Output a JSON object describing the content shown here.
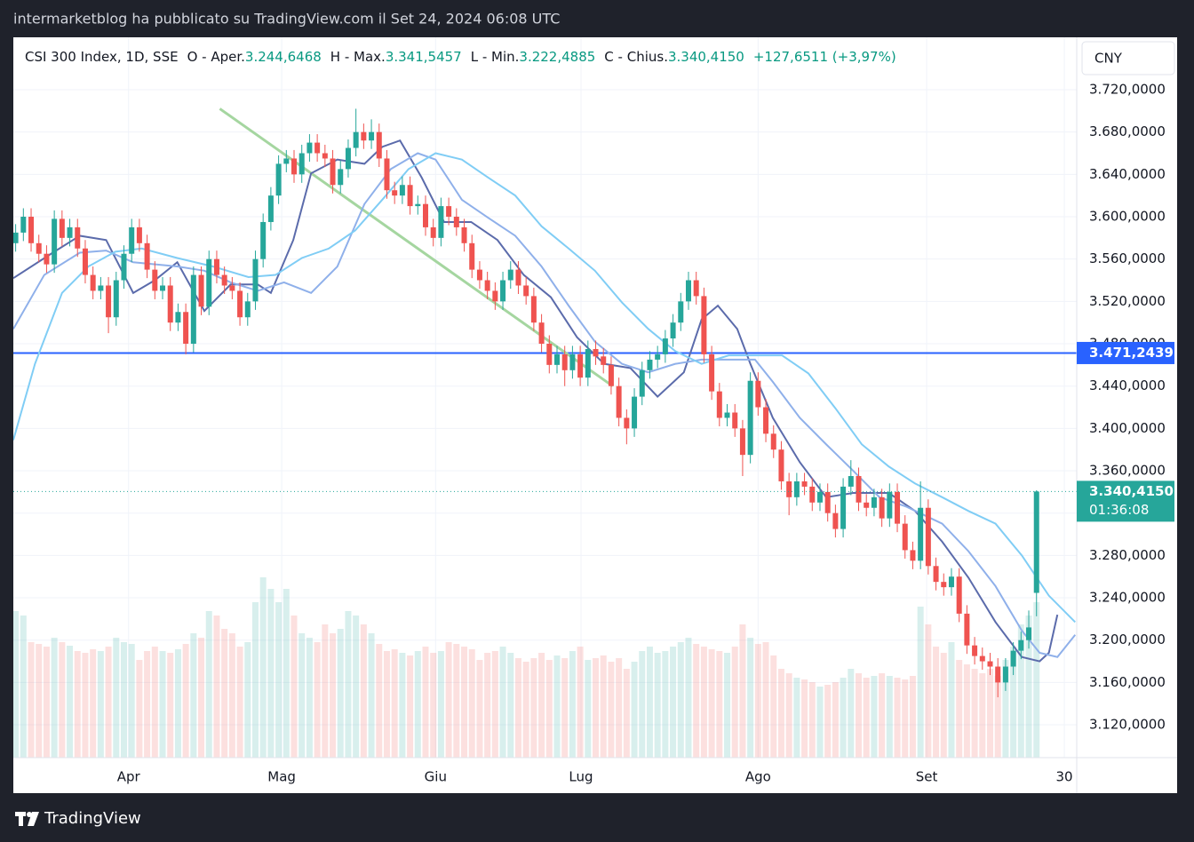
{
  "header": {
    "byline": "intermarketblog ha pubblicato su TradingView.com il Set 24, 2024 06:08 UTC"
  },
  "footer": {
    "brand": "TradingView"
  },
  "chart_data": {
    "type": "candlestick",
    "legend": {
      "symbol": "CSI 300 Index, 1D, SSE",
      "open_label": "O - Aper.",
      "open": "3.244,6468",
      "high_label": "H - Max.",
      "high": "3.341,5457",
      "low_label": "L - Min.",
      "low": "3.222,4885",
      "close_label": "C - Chius.",
      "close": "3.340,4150",
      "change": "+127,6511 (+3,97%)"
    },
    "currency": "CNY",
    "up_color": "#26a69a",
    "down_color": "#ef5350",
    "open": [
      3575,
      3585,
      3600,
      3575,
      3565,
      3555,
      3598,
      3580,
      3590,
      3570,
      3545,
      3530,
      3535,
      3505,
      3540,
      3565,
      3590,
      3575,
      3550,
      3530,
      3535,
      3500,
      3510,
      3480,
      3545,
      3515,
      3560,
      3545,
      3535,
      3530,
      3505,
      3520,
      3560,
      3595,
      3620,
      3650,
      3655,
      3640,
      3660,
      3670,
      3660,
      3655,
      3630,
      3645,
      3665,
      3680,
      3672,
      3680,
      3655,
      3625,
      3620,
      3630,
      3610,
      3612,
      3590,
      3580,
      3610,
      3600,
      3590,
      3575,
      3550,
      3540,
      3530,
      3520,
      3540,
      3550,
      3535,
      3525,
      3500,
      3480,
      3460,
      3470,
      3455,
      3470,
      3448,
      3475,
      3468,
      3460,
      3440,
      3410,
      3400,
      3430,
      3455,
      3465,
      3470,
      3485,
      3500,
      3520,
      3540,
      3525,
      3470,
      3435,
      3410,
      3415,
      3400,
      3375,
      3445,
      3420,
      3395,
      3380,
      3350,
      3335,
      3350,
      3345,
      3330,
      3340,
      3320,
      3305,
      3345,
      3355,
      3330,
      3325,
      3335,
      3315,
      3340,
      3310,
      3285,
      3275,
      3325,
      3270,
      3255,
      3250,
      3260,
      3225,
      3195,
      3185,
      3180,
      3175,
      3160,
      3175,
      3190,
      3200,
      3244.6468
    ],
    "high": [
      3593,
      3608,
      3608,
      3583,
      3573,
      3606,
      3606,
      3598,
      3598,
      3578,
      3553,
      3543,
      3543,
      3548,
      3573,
      3598,
      3598,
      3583,
      3558,
      3543,
      3543,
      3518,
      3518,
      3553,
      3553,
      3568,
      3568,
      3553,
      3543,
      3538,
      3528,
      3568,
      3603,
      3628,
      3658,
      3663,
      3663,
      3668,
      3678,
      3678,
      3668,
      3663,
      3653,
      3673,
      3702,
      3688,
      3692,
      3688,
      3663,
      3633,
      3638,
      3638,
      3620,
      3620,
      3598,
      3618,
      3618,
      3608,
      3598,
      3583,
      3558,
      3548,
      3538,
      3548,
      3558,
      3558,
      3543,
      3533,
      3508,
      3488,
      3478,
      3478,
      3478,
      3478,
      3483,
      3483,
      3476,
      3468,
      3448,
      3418,
      3438,
      3463,
      3473,
      3478,
      3493,
      3508,
      3528,
      3548,
      3548,
      3533,
      3478,
      3443,
      3423,
      3423,
      3408,
      3453,
      3453,
      3428,
      3403,
      3388,
      3358,
      3358,
      3358,
      3353,
      3348,
      3348,
      3328,
      3353,
      3370,
      3363,
      3338,
      3343,
      3343,
      3348,
      3348,
      3318,
      3293,
      3350,
      3333,
      3278,
      3263,
      3268,
      3268,
      3233,
      3203,
      3193,
      3188,
      3183,
      3183,
      3198,
      3208,
      3228,
      3341.5457
    ],
    "low": [
      3567,
      3577,
      3567,
      3557,
      3547,
      3547,
      3572,
      3572,
      3562,
      3537,
      3522,
      3522,
      3490,
      3497,
      3532,
      3557,
      3567,
      3542,
      3522,
      3522,
      3492,
      3492,
      3470,
      3472,
      3507,
      3507,
      3537,
      3527,
      3522,
      3497,
      3497,
      3512,
      3552,
      3587,
      3612,
      3642,
      3632,
      3632,
      3652,
      3652,
      3647,
      3622,
      3622,
      3637,
      3657,
      3664,
      3664,
      3647,
      3617,
      3612,
      3612,
      3602,
      3602,
      3582,
      3572,
      3572,
      3592,
      3582,
      3567,
      3542,
      3532,
      3522,
      3512,
      3512,
      3532,
      3527,
      3517,
      3492,
      3472,
      3452,
      3452,
      3440,
      3447,
      3440,
      3440,
      3460,
      3452,
      3432,
      3402,
      3385,
      3392,
      3422,
      3447,
      3457,
      3462,
      3477,
      3492,
      3512,
      3517,
      3462,
      3427,
      3402,
      3402,
      3392,
      3355,
      3367,
      3412,
      3387,
      3372,
      3342,
      3318,
      3327,
      3337,
      3322,
      3322,
      3312,
      3297,
      3297,
      3337,
      3322,
      3317,
      3317,
      3307,
      3307,
      3302,
      3277,
      3267,
      3267,
      3262,
      3247,
      3242,
      3242,
      3217,
      3187,
      3177,
      3172,
      3167,
      3146,
      3152,
      3167,
      3182,
      3192,
      3222.4885
    ],
    "close": [
      3585,
      3600,
      3575,
      3565,
      3555,
      3598,
      3580,
      3590,
      3570,
      3545,
      3530,
      3535,
      3505,
      3540,
      3565,
      3590,
      3575,
      3550,
      3530,
      3535,
      3500,
      3510,
      3480,
      3545,
      3515,
      3560,
      3545,
      3535,
      3530,
      3505,
      3520,
      3560,
      3595,
      3620,
      3650,
      3655,
      3640,
      3660,
      3670,
      3660,
      3655,
      3630,
      3645,
      3665,
      3680,
      3672,
      3680,
      3655,
      3625,
      3620,
      3630,
      3610,
      3612,
      3590,
      3580,
      3610,
      3600,
      3590,
      3575,
      3550,
      3540,
      3530,
      3520,
      3540,
      3550,
      3535,
      3525,
      3500,
      3480,
      3460,
      3470,
      3455,
      3470,
      3448,
      3475,
      3468,
      3460,
      3440,
      3410,
      3400,
      3430,
      3455,
      3465,
      3470,
      3485,
      3500,
      3520,
      3540,
      3525,
      3470,
      3435,
      3410,
      3415,
      3400,
      3375,
      3445,
      3420,
      3395,
      3380,
      3350,
      3335,
      3350,
      3345,
      3330,
      3340,
      3320,
      3305,
      3345,
      3355,
      3330,
      3325,
      3335,
      3315,
      3340,
      3310,
      3285,
      3275,
      3325,
      3270,
      3255,
      3250,
      3260,
      3225,
      3195,
      3185,
      3180,
      3175,
      3160,
      3175,
      3190,
      3200,
      3212,
      3340.415
    ],
    "volume": [
      165,
      160,
      130,
      128,
      125,
      135,
      130,
      126,
      120,
      118,
      122,
      120,
      125,
      135,
      130,
      128,
      110,
      120,
      125,
      120,
      118,
      122,
      128,
      140,
      135,
      165,
      160,
      145,
      140,
      125,
      130,
      175,
      203,
      190,
      175,
      190,
      160,
      140,
      135,
      130,
      150,
      140,
      145,
      165,
      160,
      150,
      140,
      128,
      120,
      122,
      118,
      115,
      120,
      125,
      118,
      120,
      130,
      128,
      125,
      122,
      110,
      118,
      120,
      125,
      118,
      112,
      108,
      112,
      118,
      110,
      115,
      112,
      120,
      125,
      110,
      112,
      115,
      108,
      112,
      100,
      108,
      120,
      125,
      118,
      120,
      125,
      130,
      135,
      128,
      125,
      122,
      120,
      118,
      125,
      150,
      135,
      128,
      130,
      115,
      100,
      95,
      90,
      88,
      85,
      80,
      82,
      85,
      90,
      100,
      95,
      90,
      92,
      95,
      92,
      90,
      88,
      92,
      170,
      150,
      125,
      118,
      130,
      110,
      105,
      100,
      95,
      100,
      92,
      110,
      125,
      150,
      160,
      175
    ],
    "xlim": [
      -0.3,
      137.2
    ],
    "xticks": [
      {
        "value": 14.6,
        "label": "Apr"
      },
      {
        "value": 34.4,
        "label": "Mag"
      },
      {
        "value": 54.3,
        "label": "Giu"
      },
      {
        "value": 73.1,
        "label": "Lug"
      },
      {
        "value": 96,
        "label": "Ago"
      },
      {
        "value": 117.8,
        "label": "Set"
      },
      {
        "value": 135.6,
        "label": "30"
      }
    ],
    "ylim": [
      3089,
      3769.5
    ],
    "yticks": [
      {
        "value": 3120,
        "label": "3.120,0000"
      },
      {
        "value": 3160,
        "label": "3.160,0000"
      },
      {
        "value": 3200,
        "label": "3.200,0000"
      },
      {
        "value": 3240,
        "label": "3.240,0000"
      },
      {
        "value": 3280,
        "label": "3.280,0000"
      },
      {
        "value": 3320,
        "label": "3.320,0000"
      },
      {
        "value": 3360,
        "label": "3.360,0000"
      },
      {
        "value": 3400,
        "label": "3.400,0000"
      },
      {
        "value": 3440,
        "label": "3.440,0000"
      },
      {
        "value": 3480,
        "label": "3.480,0000"
      },
      {
        "value": 3520,
        "label": "3.520,0000"
      },
      {
        "value": 3560,
        "label": "3.560,0000"
      },
      {
        "value": 3600,
        "label": "3.600,0000"
      },
      {
        "value": 3640,
        "label": "3.640,0000"
      },
      {
        "value": 3680,
        "label": "3.680,0000"
      },
      {
        "value": 3720,
        "label": "3.720,0000"
      }
    ],
    "vlim": [
      0,
      260
    ],
    "grid": true,
    "moving_averages": [
      {
        "color": "#5b6bab",
        "x": [
          -0.3,
          4.8,
          8.3,
          11.7,
          15.2,
          18,
          20.9,
          24.4,
          27.8,
          31.3,
          33,
          35.9,
          38.2,
          41.6,
          45.1,
          47.4,
          49.7,
          52.5,
          55.4,
          58.9,
          62.3,
          65.7,
          69.2,
          72.6,
          76.1,
          79.5,
          83,
          86.4,
          88.7,
          90.8,
          93.3,
          95,
          97.9,
          101.4,
          104.8,
          108.3,
          112.9,
          116.3,
          119.8,
          123.2,
          126.7,
          130.1,
          132.4,
          133.6,
          134.7
        ],
        "values": [
          3542,
          3566,
          3582,
          3578,
          3528,
          3540,
          3557,
          3511,
          3536,
          3536,
          3528,
          3578,
          3641,
          3654,
          3650,
          3666,
          3672,
          3637,
          3595,
          3595,
          3578,
          3545,
          3524,
          3486,
          3461,
          3457,
          3430,
          3453,
          3503,
          3516,
          3494,
          3461,
          3410,
          3368,
          3335,
          3339,
          3339,
          3322,
          3293,
          3259,
          3217,
          3184,
          3180,
          3188,
          3224
        ]
      },
      {
        "color": "#8fb0ea",
        "x": [
          -0.3,
          3.7,
          8.3,
          11.7,
          15.2,
          20.9,
          24.4,
          27.8,
          31.3,
          34.7,
          38.2,
          41.6,
          45.1,
          48.5,
          52,
          54.3,
          57.7,
          61.1,
          64.6,
          68,
          71.5,
          74.9,
          78.4,
          81.8,
          85.3,
          88.7,
          92.2,
          95.6,
          97.9,
          101.4,
          104.8,
          108.3,
          111.7,
          115.2,
          119.8,
          123.2,
          126.7,
          130.1,
          132.4,
          134.7,
          137
        ],
        "values": [
          3494,
          3545,
          3566,
          3568,
          3557,
          3553,
          3549,
          3538,
          3530,
          3538,
          3528,
          3553,
          3612,
          3645,
          3660,
          3654,
          3616,
          3599,
          3582,
          3553,
          3516,
          3482,
          3461,
          3453,
          3461,
          3465,
          3465,
          3465,
          3444,
          3410,
          3385,
          3360,
          3335,
          3326,
          3310,
          3284,
          3251,
          3209,
          3188,
          3184,
          3205
        ]
      },
      {
        "color": "#80cdf5",
        "x": [
          -0.3,
          2.5,
          6,
          9.4,
          12.9,
          16.3,
          20.9,
          25.5,
          30.1,
          33.6,
          37,
          40.5,
          43.9,
          47.4,
          50.8,
          54.3,
          57.7,
          61.1,
          64.6,
          68,
          71.5,
          74.9,
          78.4,
          81.8,
          85.3,
          88.7,
          92.2,
          95.6,
          99.1,
          102.5,
          106,
          109.4,
          112.9,
          116.3,
          119.8,
          123.2,
          126.7,
          130.1,
          133.6,
          137
        ],
        "values": [
          3389,
          3461,
          3528,
          3553,
          3567,
          3570,
          3561,
          3553,
          3543,
          3545,
          3561,
          3570,
          3587,
          3616,
          3645,
          3660,
          3654,
          3637,
          3620,
          3591,
          3570,
          3549,
          3519,
          3494,
          3473,
          3461,
          3469,
          3469,
          3469,
          3452,
          3419,
          3385,
          3364,
          3348,
          3335,
          3322,
          3310,
          3280,
          3242,
          3217
        ]
      }
    ],
    "trendline": {
      "color": "#a5d6a0",
      "x": [
        26.4,
        77.2
      ],
      "values": [
        3702,
        3440
      ]
    },
    "hline": {
      "value": 3471.2439,
      "label": "3.471,2439",
      "color": "#2962ff"
    },
    "last_price": {
      "value": 3340.415,
      "label": "3.340,4150",
      "countdown": "01:36:08"
    }
  }
}
